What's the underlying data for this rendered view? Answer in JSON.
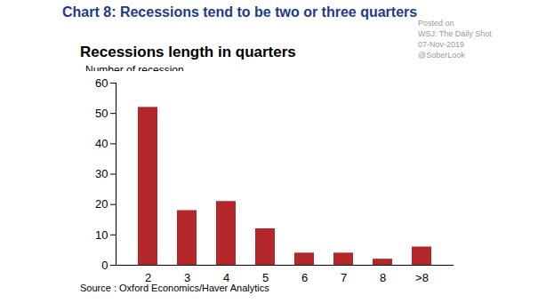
{
  "chart_data": {
    "type": "bar",
    "title": "Chart 8: Recessions tend to be two or three quarters",
    "subtitle": "Recessions length in quarters",
    "y_label": "Number of recession",
    "source": "Source : Oxford Economics/Haver Analytics",
    "annotations": [
      "Posted on",
      "WSJ: The Daily Shot",
      "07-Nov-2019",
      "@SoberLook"
    ],
    "categories": [
      "2",
      "3",
      "4",
      "5",
      "6",
      "7",
      "8",
      ">8"
    ],
    "values": [
      52,
      18,
      21,
      12,
      4,
      4,
      2,
      6
    ],
    "color": "#b3262a",
    "ylim": [
      0,
      60
    ],
    "yticks": [
      0,
      10,
      20,
      30,
      40,
      50,
      60
    ],
    "grid": false
  }
}
